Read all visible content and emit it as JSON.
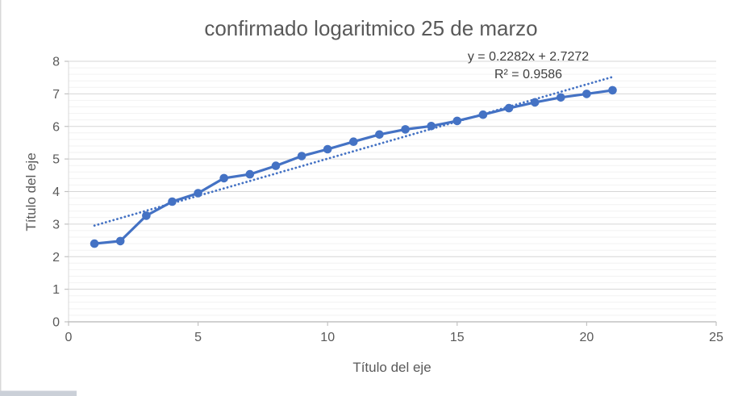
{
  "window": {
    "background": "#ffffff",
    "left_edge_color": "#d9d9d9",
    "bottom_strip_color": "#cbd0d8"
  },
  "chart_data": {
    "type": "line",
    "title": "confirmado logaritmico 25 de marzo",
    "xlabel": "Título del eje",
    "ylabel": "Título del eje",
    "x": [
      1,
      2,
      3,
      4,
      5,
      6,
      7,
      8,
      9,
      10,
      11,
      12,
      13,
      14,
      15,
      16,
      17,
      18,
      19,
      20,
      21
    ],
    "series": [
      {
        "name": "confirmado logaritmico",
        "values": [
          2.4,
          2.48,
          3.26,
          3.69,
          3.95,
          4.41,
          4.53,
          4.79,
          5.09,
          5.3,
          5.53,
          5.75,
          5.91,
          6.01,
          6.17,
          6.36,
          6.56,
          6.74,
          6.89,
          7.0,
          7.11
        ]
      }
    ],
    "trendline": {
      "equation": "y = 0.2282x + 2.7272",
      "r2_label": "R² = 0.9586",
      "slope": 0.2282,
      "intercept": 2.7272,
      "x_start": 1,
      "x_end": 21,
      "style": "dotted"
    },
    "xlim": [
      0,
      25
    ],
    "ylim": [
      0,
      8
    ],
    "x_ticks": [
      0,
      5,
      10,
      15,
      20,
      25
    ],
    "y_ticks": [
      0,
      1,
      2,
      3,
      4,
      5,
      6,
      7,
      8
    ],
    "y_minor_step": 0.2,
    "grid": "horizontal major + minor, no vertical",
    "legend": "none",
    "colors": {
      "series": "#4472C4",
      "major_grid": "#d6d6d6",
      "minor_grid": "#f2f2f2",
      "axis": "#c2c2c2",
      "y_axis_line": "#d9d9d9",
      "text": "#595959",
      "equation_text": "#3f3f3f"
    }
  }
}
